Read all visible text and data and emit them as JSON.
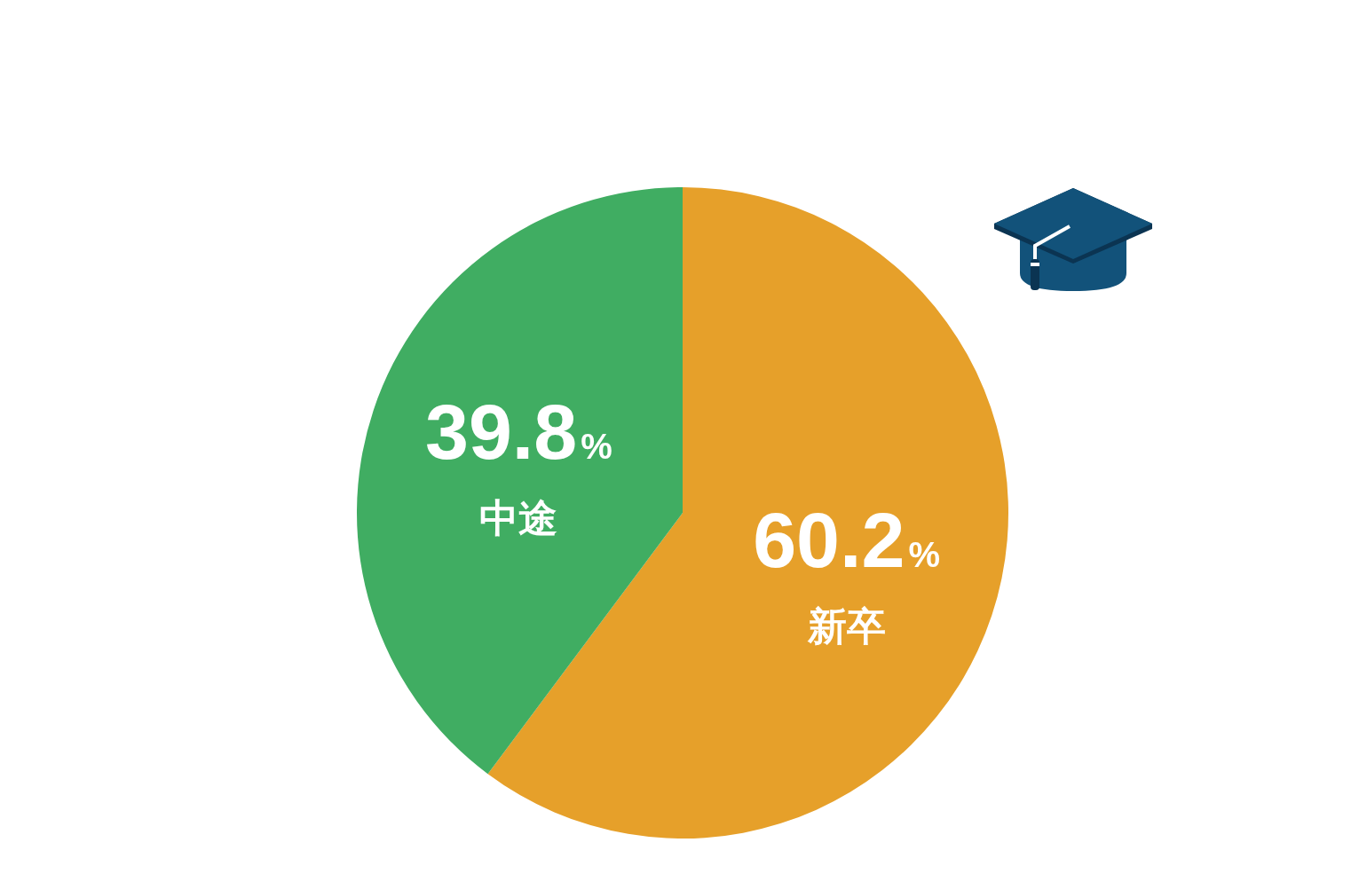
{
  "chart_data": {
    "type": "pie",
    "categories": [
      "新卒",
      "中途"
    ],
    "values": [
      60.2,
      39.8
    ],
    "colors": [
      "#e6a02a",
      "#40ad62"
    ],
    "value_labels": [
      "60.2%",
      "39.8%"
    ]
  }
}
